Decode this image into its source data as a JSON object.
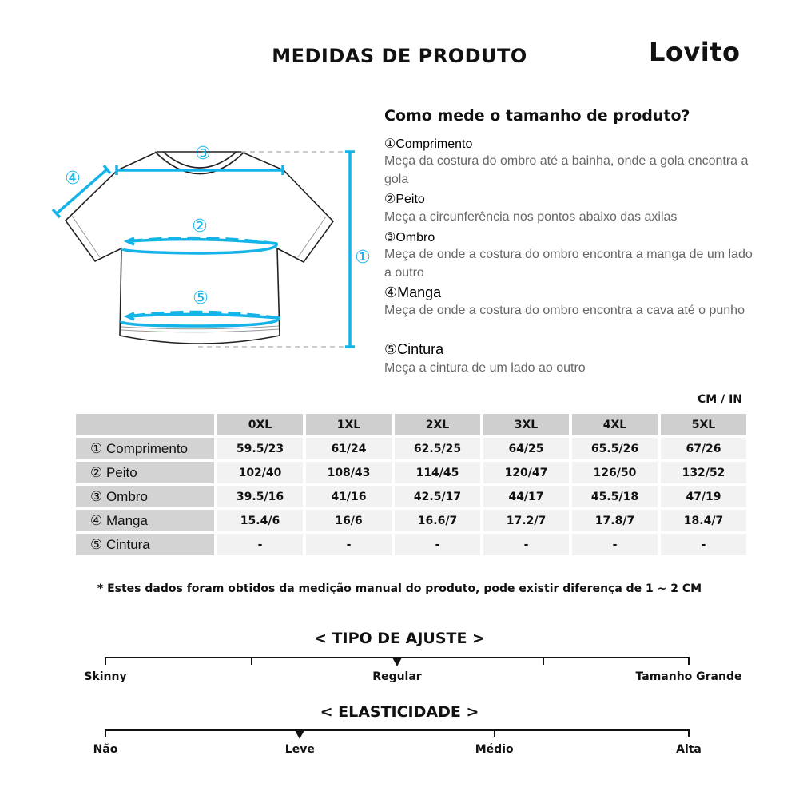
{
  "header": {
    "title": "MEDIDAS DE PRODUTO",
    "brand": "Lovito"
  },
  "diagram": {
    "labels": [
      "①",
      "②",
      "③",
      "④",
      "⑤"
    ],
    "accent": "#14b4e8"
  },
  "guide": {
    "title": "Como mede o tamanho de produto?",
    "items": [
      {
        "term": "①Comprimento",
        "desc": "Meça da costura do ombro até a bainha, onde a gola encontra a gola"
      },
      {
        "term": "②Peito",
        "desc": "Meça a circunferência nos pontos abaixo das axilas"
      },
      {
        "term": "③Ombro",
        "desc": "Meça de onde a costura do ombro encontra a manga de um lado a outro"
      },
      {
        "term": "④Manga",
        "desc": "Meça de onde a costura do ombro encontra a cava até o punho"
      },
      {
        "term": "⑤Cintura",
        "desc": "Meça a cintura de um lado ao outro"
      }
    ]
  },
  "table": {
    "unit": "CM / IN",
    "sizes": [
      "0XL",
      "1XL",
      "2XL",
      "3XL",
      "4XL",
      "5XL"
    ],
    "rows": [
      {
        "label": "① Comprimento",
        "values": [
          "59.5/23",
          "61/24",
          "62.5/25",
          "64/25",
          "65.5/26",
          "67/26"
        ]
      },
      {
        "label": "② Peito",
        "values": [
          "102/40",
          "108/43",
          "114/45",
          "120/47",
          "126/50",
          "132/52"
        ]
      },
      {
        "label": "③ Ombro",
        "values": [
          "39.5/16",
          "41/16",
          "42.5/17",
          "44/17",
          "45.5/18",
          "47/19"
        ]
      },
      {
        "label": "④ Manga",
        "values": [
          "15.4/6",
          "16/6",
          "16.6/7",
          "17.2/7",
          "17.8/7",
          "18.4/7"
        ]
      },
      {
        "label": "⑤ Cintura",
        "values": [
          "-",
          "-",
          "-",
          "-",
          "-",
          "-"
        ]
      }
    ]
  },
  "note": "* Estes dados foram obtidos da medição manual do produto, pode existir diferença de 1 ~ 2 CM",
  "fit": {
    "title": "< TIPO DE AJUSTE >",
    "ticks": 5,
    "labels": [
      "Skinny",
      "Regular",
      "Tamanho Grande"
    ],
    "label_positions": [
      0,
      0.5,
      1
    ],
    "level": 0.5
  },
  "elasticity": {
    "title": "< ELASTICIDADE >",
    "ticks": 4,
    "labels": [
      "Não",
      "Leve",
      "Médio",
      "Alta"
    ],
    "label_positions": [
      0,
      0.3333,
      0.6667,
      1
    ],
    "level": 0.3333
  }
}
